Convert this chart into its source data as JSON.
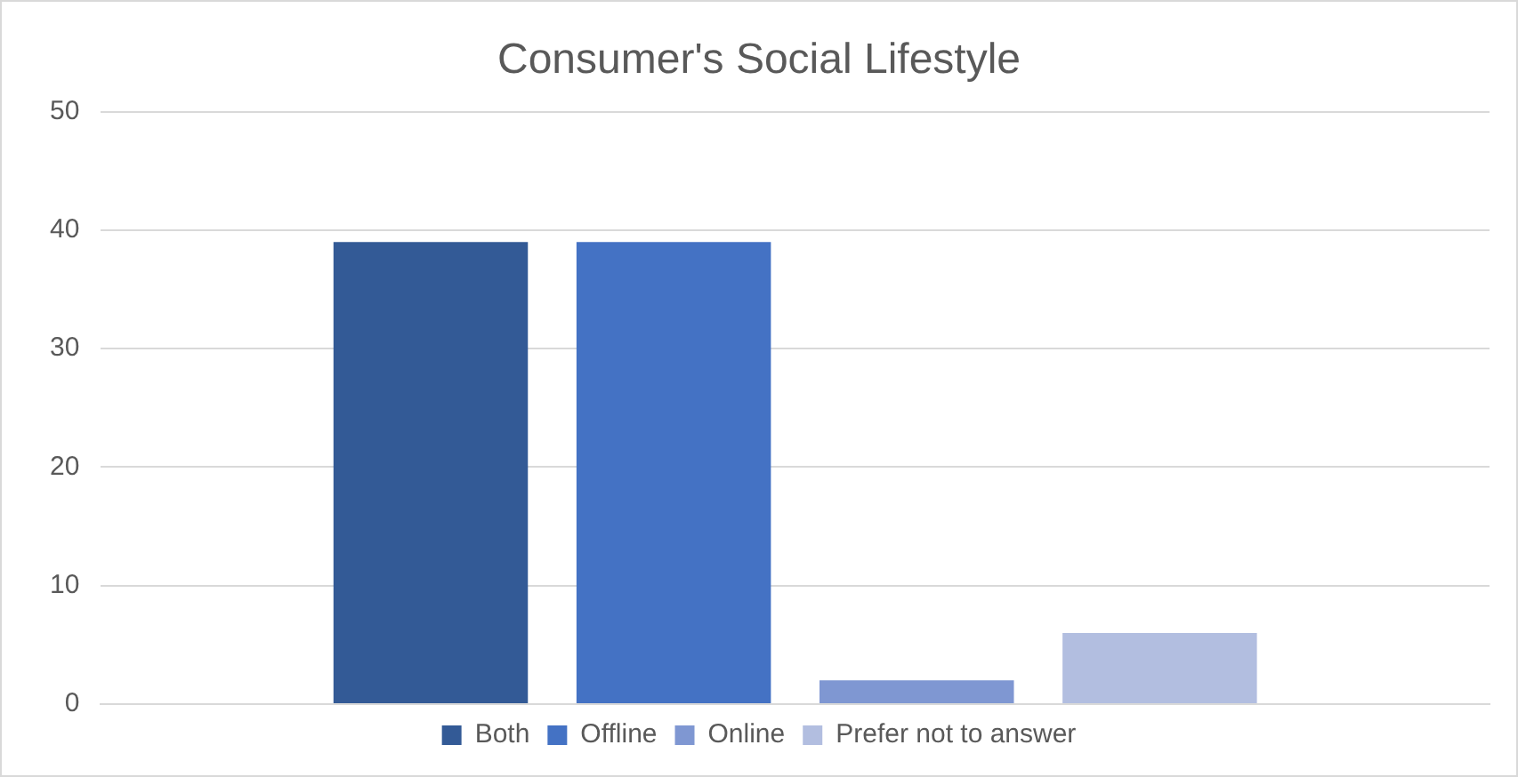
{
  "chart_data": {
    "type": "bar",
    "title": "Consumer's Social Lifestyle",
    "categories": [
      null
    ],
    "series": [
      {
        "name": "Both",
        "color": "#335a96",
        "values": [
          39
        ]
      },
      {
        "name": "Offline",
        "color": "#4472c4",
        "values": [
          39
        ]
      },
      {
        "name": "Online",
        "color": "#7f97d2",
        "values": [
          2
        ]
      },
      {
        "name": "Prefer not to answer",
        "color": "#b2bee0",
        "values": [
          6
        ]
      }
    ],
    "ylim": [
      0,
      50
    ],
    "yticks": [
      0,
      10,
      20,
      30,
      40,
      50
    ],
    "grid": "y",
    "legend": "bottom"
  }
}
